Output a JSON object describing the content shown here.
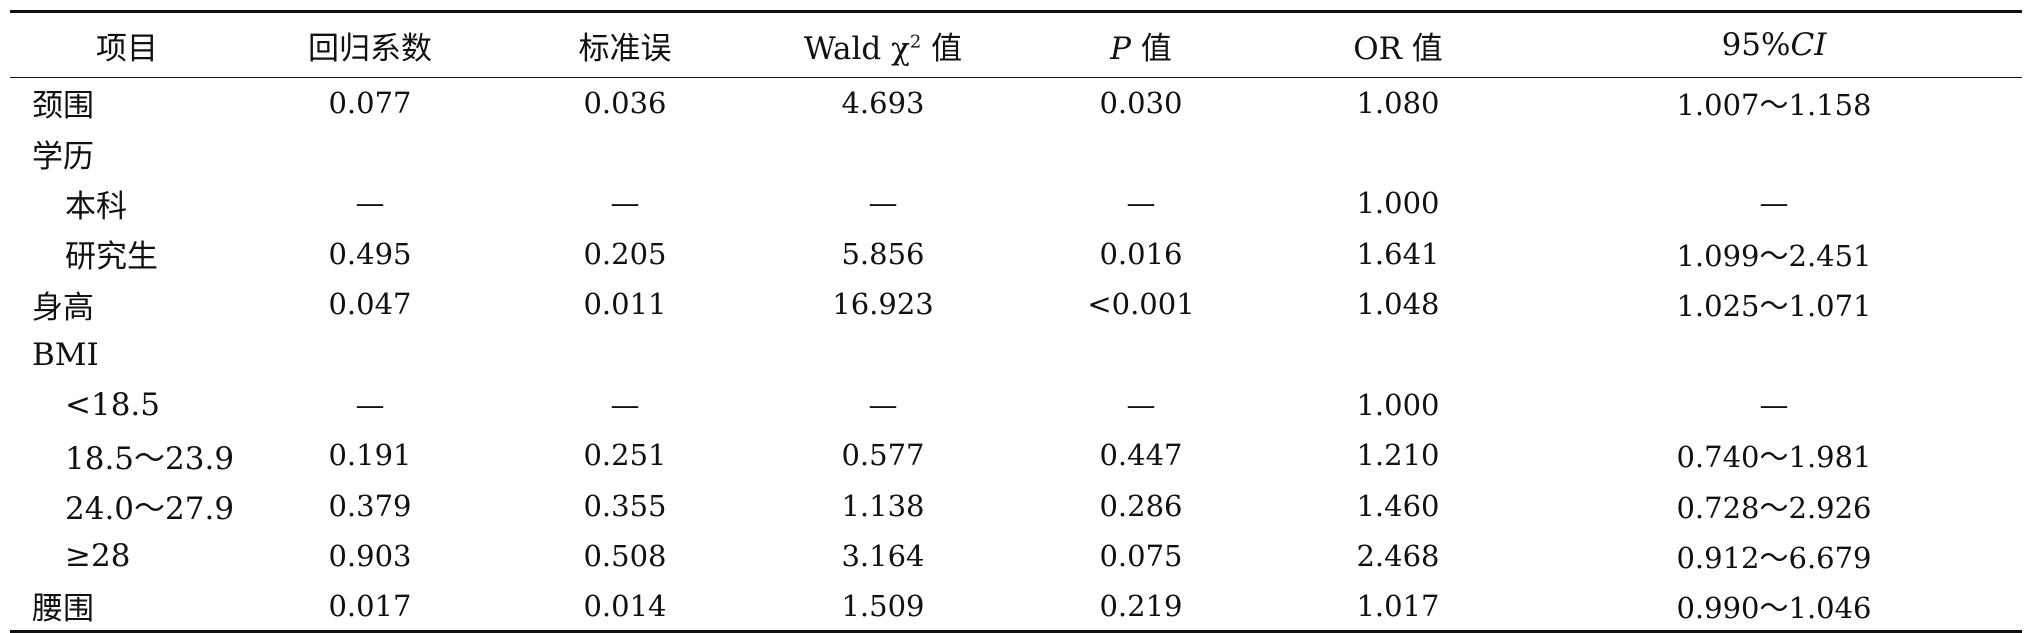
{
  "table": {
    "headers": {
      "item": "项目",
      "coef": "回归系数",
      "se": "标准误",
      "wald_prefix": "Wald χ",
      "wald_sup": "2",
      "wald_suffix": " 值",
      "p_italic": "P",
      "p_suffix": " 值",
      "or": "OR 值",
      "ci_prefix": "95%",
      "ci_italic": "CI"
    },
    "rows": [
      {
        "label": "颈围",
        "indent": false,
        "coef": "0.077",
        "se": "0.036",
        "wald": "4.693",
        "p": "0.030",
        "or": "1.080",
        "ci": "1.007～1.158"
      },
      {
        "label": "学历",
        "indent": false,
        "coef": "",
        "se": "",
        "wald": "",
        "p": "",
        "or": "",
        "ci": ""
      },
      {
        "label": "本科",
        "indent": true,
        "coef": "—",
        "se": "—",
        "wald": "—",
        "p": "—",
        "or": "1.000",
        "ci": "—"
      },
      {
        "label": "研究生",
        "indent": true,
        "coef": "0.495",
        "se": "0.205",
        "wald": "5.856",
        "p": "0.016",
        "or": "1.641",
        "ci": "1.099～2.451"
      },
      {
        "label": "身高",
        "indent": false,
        "coef": "0.047",
        "se": "0.011",
        "wald": "16.923",
        "p": "<0.001",
        "or": "1.048",
        "ci": "1.025～1.071"
      },
      {
        "label": "BMI",
        "indent": false,
        "coef": "",
        "se": "",
        "wald": "",
        "p": "",
        "or": "",
        "ci": ""
      },
      {
        "label": "<18.5",
        "indent": true,
        "coef": "—",
        "se": "—",
        "wald": "—",
        "p": "—",
        "or": "1.000",
        "ci": "—"
      },
      {
        "label": "18.5～23.9",
        "indent": true,
        "coef": "0.191",
        "se": "0.251",
        "wald": "0.577",
        "p": "0.447",
        "or": "1.210",
        "ci": "0.740～1.981"
      },
      {
        "label": "24.0～27.9",
        "indent": true,
        "coef": "0.379",
        "se": "0.355",
        "wald": "1.138",
        "p": "0.286",
        "or": "1.460",
        "ci": "0.728～2.926"
      },
      {
        "label": "≥28",
        "indent": true,
        "coef": "0.903",
        "se": "0.508",
        "wald": "3.164",
        "p": "0.075",
        "or": "2.468",
        "ci": "0.912～6.679"
      },
      {
        "label": "腰围",
        "indent": false,
        "coef": "0.017",
        "se": "0.014",
        "wald": "1.509",
        "p": "0.219",
        "or": "1.017",
        "ci": "0.990～1.046"
      }
    ]
  }
}
